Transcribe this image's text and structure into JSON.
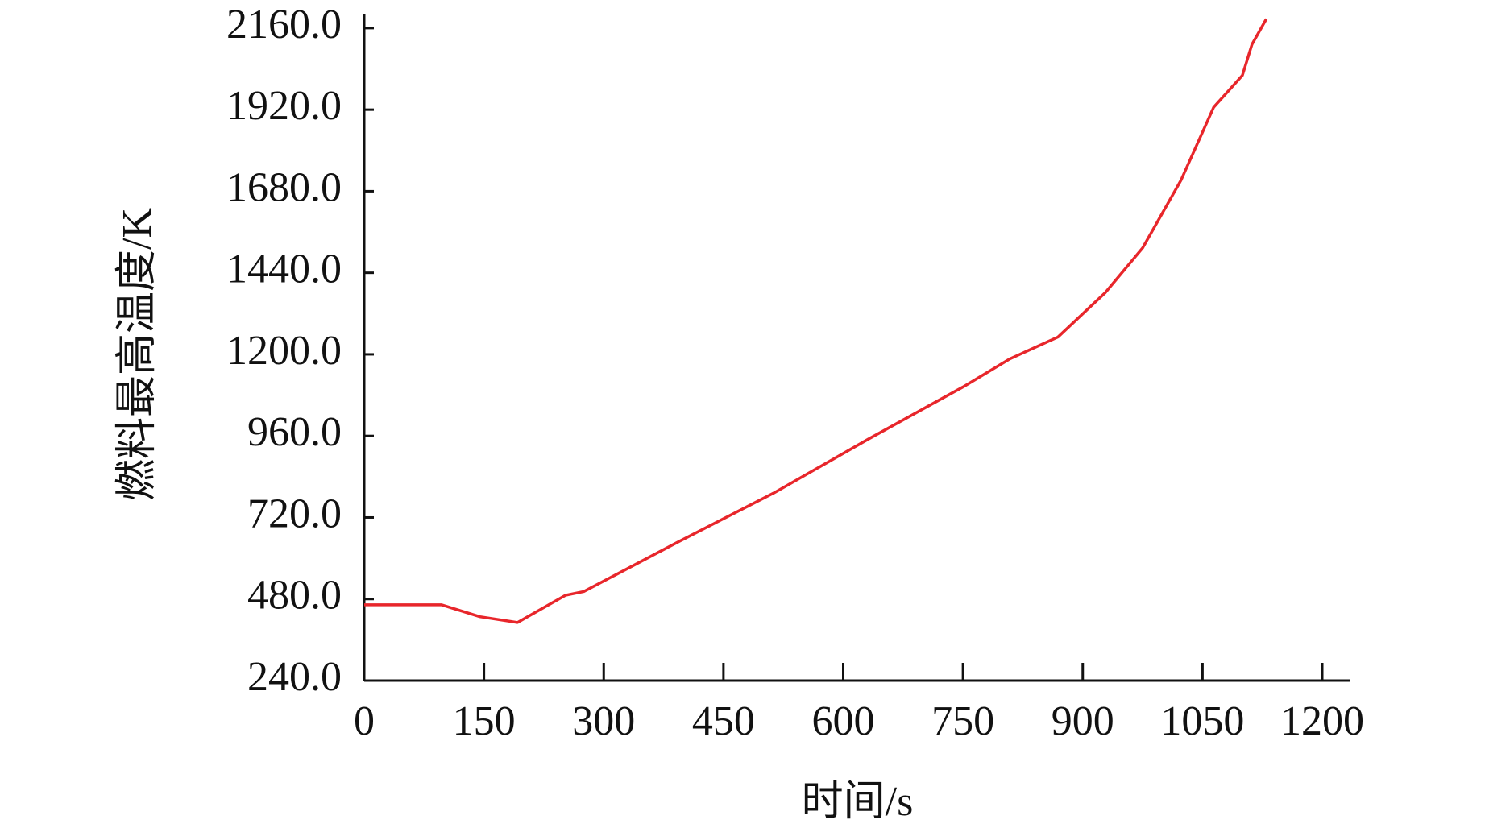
{
  "chart_data": {
    "type": "line",
    "x_label": "时间/s",
    "y_label": "燃料最高温度/K",
    "x": [
      0,
      97,
      145,
      192,
      252,
      275,
      394,
      513,
      631,
      750,
      809,
      869,
      928,
      975,
      1023,
      1064,
      1100,
      1112,
      1130
    ],
    "series": [
      {
        "name": "燃料最高温度",
        "color": "#e8262b",
        "values": [
          463,
          463,
          428,
          411,
          491,
          502,
          649,
          792,
          950,
          1104,
          1187,
          1251,
          1381,
          1513,
          1712,
          1927,
          2021,
          2112,
          2187
        ]
      }
    ],
    "xlim": [
      0,
      1200
    ],
    "xticks": [
      0,
      150,
      300,
      450,
      600,
      750,
      900,
      1050,
      1200
    ],
    "ylim": [
      240,
      2200
    ],
    "yticks": [
      {
        "value": 240,
        "label": "240.0"
      },
      {
        "value": 480,
        "label": "480.0"
      },
      {
        "value": 720,
        "label": "720.0"
      },
      {
        "value": 960,
        "label": "960.0"
      },
      {
        "value": 1200,
        "label": "1200.0"
      },
      {
        "value": 1440,
        "label": "1440.0"
      },
      {
        "value": 1680,
        "label": "1680.0"
      },
      {
        "value": 1920,
        "label": "1920.0"
      },
      {
        "value": 2160,
        "label": "2160.0"
      }
    ],
    "grid": false
  }
}
